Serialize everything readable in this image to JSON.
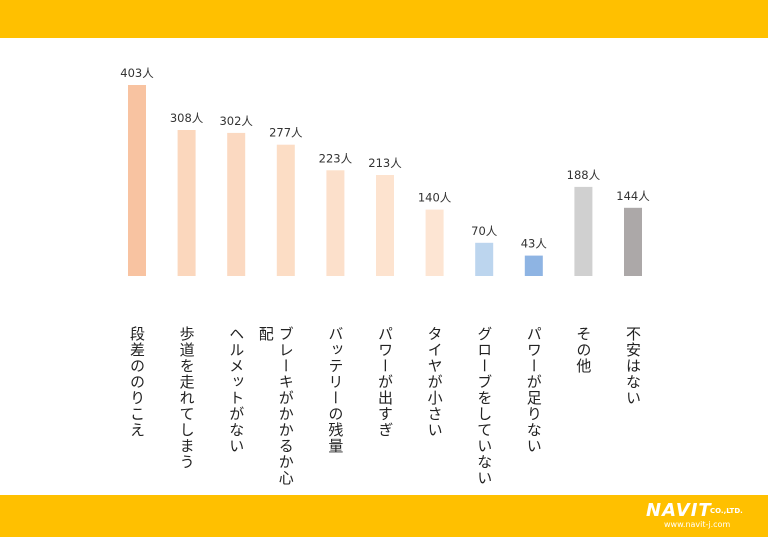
{
  "colors": {
    "band": "#ffc000",
    "bars": [
      "#f8c3a1",
      "#fbd7bd",
      "#fbd9c1",
      "#fcddc5",
      "#fce0cb",
      "#fde3cf",
      "#fde5d3",
      "#bcd5ee",
      "#8eb4e3",
      "#d0d0d0",
      "#aca8a8"
    ]
  },
  "logo": {
    "brand": "NAVIT",
    "company": "CO.,LTD.",
    "url": "www.navit-j.com"
  },
  "chart_data": {
    "type": "bar",
    "categories": [
      "段差ののりこえ",
      "歩道を走れてしまう",
      "ヘルメットがない",
      "ブレーキがかかるか心配",
      "バッテリーの残量",
      "パワーが出すぎ",
      "タイヤが小さい",
      "グローブをしていない",
      "パワーが足りない",
      "その他",
      "不安はない"
    ],
    "values": [
      403,
      308,
      302,
      277,
      223,
      213,
      140,
      70,
      43,
      188,
      144
    ],
    "value_labels": [
      "403人",
      "308人",
      "302人",
      "277人",
      "223人",
      "213人",
      "140人",
      "70人",
      "43人",
      "188人",
      "144人"
    ],
    "unit": "人",
    "ylim": [
      0,
      403
    ],
    "grid": false,
    "legend": "none"
  }
}
